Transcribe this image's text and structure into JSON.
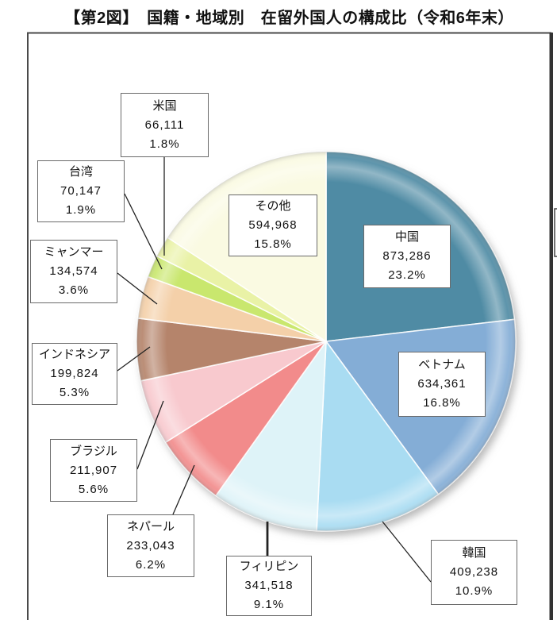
{
  "page": {
    "background": "#ffffff"
  },
  "title": "【第2図】　国籍・地域別　在留外国人の構成比（令和6年末）",
  "chart_data": {
    "type": "pie",
    "title": "国籍・地域別 在留外国人の構成比（令和6年末）",
    "start_angle_deg": 0,
    "direction": "clockwise",
    "label_format": "name / resident count / percent share",
    "slices": [
      {
        "key": "china",
        "label": "中国",
        "value": "873,286",
        "percent": "23.2%",
        "percent_value": 23.2,
        "color": "#4f8ba4"
      },
      {
        "key": "vietnam",
        "label": "ベトナム",
        "value": "634,361",
        "percent": "16.8%",
        "percent_value": 16.8,
        "color": "#84add6"
      },
      {
        "key": "korea",
        "label": "韓国",
        "value": "409,238",
        "percent": "10.9%",
        "percent_value": 10.9,
        "color": "#a9dcf2"
      },
      {
        "key": "philippines",
        "label": "フィリピン",
        "value": "341,518",
        "percent": "9.1%",
        "percent_value": 9.1,
        "color": "#def3f8"
      },
      {
        "key": "nepal",
        "label": "ネパール",
        "value": "233,043",
        "percent": "6.2%",
        "percent_value": 6.2,
        "color": "#f28b8b"
      },
      {
        "key": "brazil",
        "label": "ブラジル",
        "value": "211,907",
        "percent": "5.6%",
        "percent_value": 5.6,
        "color": "#f8c9ce"
      },
      {
        "key": "indonesia",
        "label": "インドネシア",
        "value": "199,824",
        "percent": "5.3%",
        "percent_value": 5.3,
        "color": "#b5846b"
      },
      {
        "key": "myanmar",
        "label": "ミャンマー",
        "value": "134,574",
        "percent": "3.6%",
        "percent_value": 3.6,
        "color": "#f4d0a9"
      },
      {
        "key": "taiwan",
        "label": "台湾",
        "value": "70,147",
        "percent": "1.9%",
        "percent_value": 1.9,
        "color": "#c9e76e"
      },
      {
        "key": "usa",
        "label": "米国",
        "value": "66,111",
        "percent": "1.8%",
        "percent_value": 1.8,
        "color": "#e9f2a6"
      },
      {
        "key": "others",
        "label": "その他",
        "value": "594,968",
        "percent": "15.8%",
        "percent_value": 15.8,
        "color": "#fafae2"
      }
    ]
  }
}
